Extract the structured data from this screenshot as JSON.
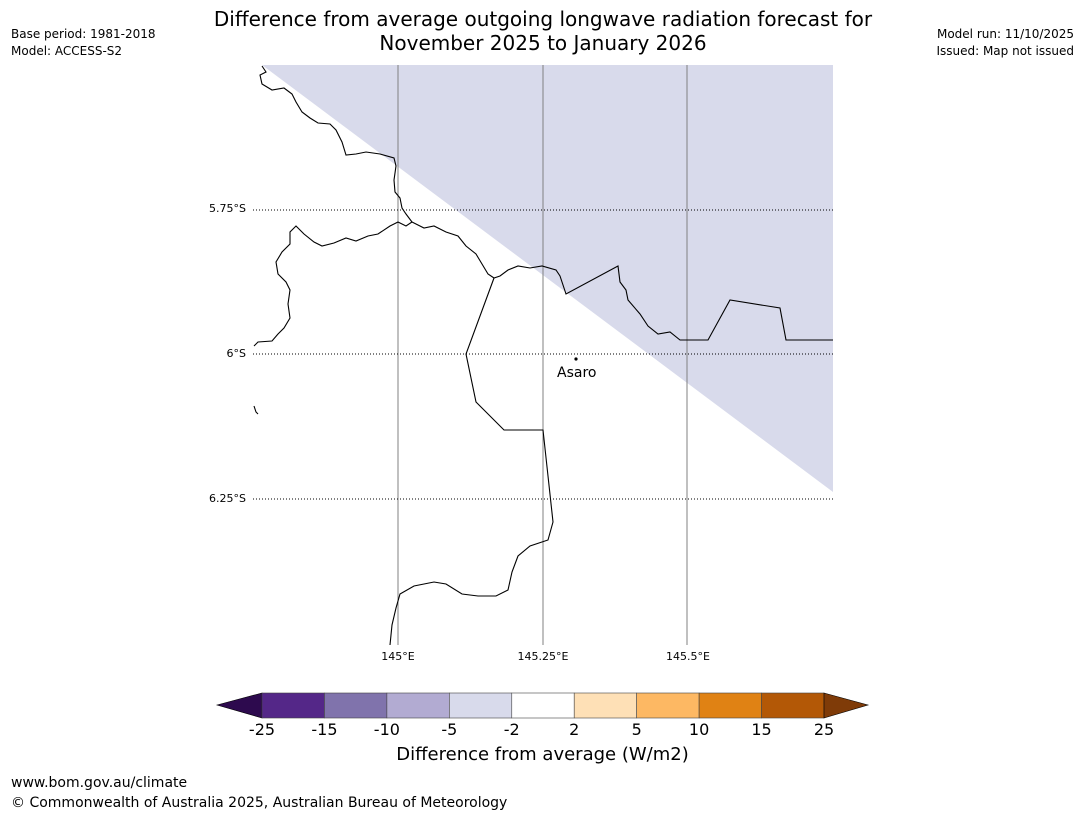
{
  "title_line1": "Difference from average outgoing longwave radiation forecast for",
  "title_line2": "November 2025 to January 2026",
  "base_period": "Base period: 1981-2018",
  "model": "Model: ACCESS-S2",
  "model_run": "Model run: 11/10/2025",
  "issued": "Issued: Map not issued",
  "lat_labels": [
    "5.75°S",
    "6°S",
    "6.25°S"
  ],
  "lon_labels": [
    "145°E",
    "145.25°E",
    "145.5°E"
  ],
  "place": "Asaro",
  "colorbar": {
    "title": "Difference from average (W/m2)",
    "ticks": [
      "-25",
      "-15",
      "-10",
      "-5",
      "-2",
      "2",
      "5",
      "10",
      "15",
      "25"
    ],
    "under_color": "#2d0a4e",
    "over_color": "#7f3b08",
    "colors": [
      "#542788",
      "#8073ac",
      "#b2abd2",
      "#d8daeb",
      "#ffffff",
      "#fee0b6",
      "#fdb863",
      "#e08214",
      "#b35806"
    ]
  },
  "fill_color": "#d8daeb",
  "footer_url": "www.bom.gov.au/climate",
  "footer_copyright": "© Commonwealth of Australia 2025, Australian Bureau of Meteorology"
}
